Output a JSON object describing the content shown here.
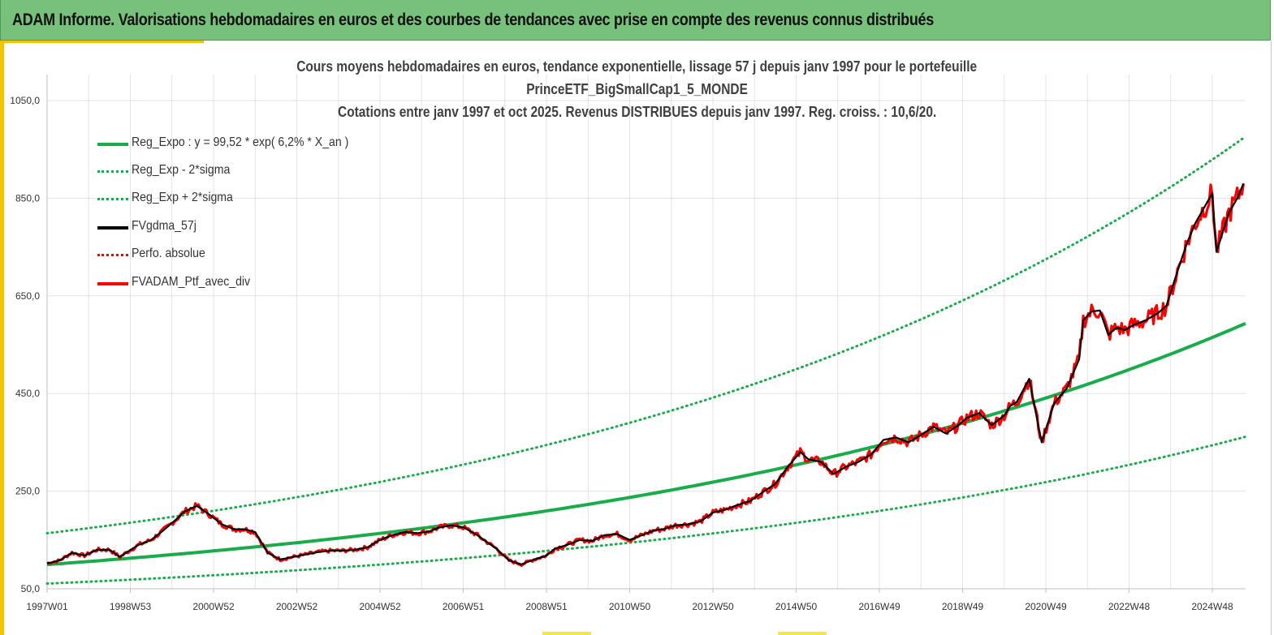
{
  "banner": {
    "title": "ADAM Informe. Valorisations hebdomadaires en euros et des courbes de tendances avec prise en compte des revenus connus distribués"
  },
  "colors": {
    "banner_bg": "#77c27b",
    "trend": "#1aab4b",
    "smooth": "#000000",
    "portfolio": "#ff0000",
    "accent": "#f5c400"
  },
  "chart_data": {
    "type": "line",
    "title": [
      "Cours moyens hebdomadaires  en euros, tendance exponentielle, lissage 57 j depuis janv 1997 pour le portefeuille",
      "PrinceETF_BigSmallCap1_5_MONDE",
      "Cotations  entre janv 1997 et oct 2025. Revenus DISTRIBUES depuis janv 1997. Reg. croiss. : 10,6/20."
    ],
    "xlabel": "",
    "ylabel": "",
    "ylim": [
      50,
      1050
    ],
    "xlim": [
      1997.0,
      2025.8
    ],
    "yticks": [
      "1050,0",
      "850,0",
      "650,0",
      "450,0",
      "250,0",
      "50,0"
    ],
    "ytick_values": [
      1050,
      850,
      650,
      450,
      250,
      50
    ],
    "xticks": [
      "1997W01",
      "1998W53",
      "2000W52",
      "2002W52",
      "2004W52",
      "2006W51",
      "2008W51",
      "2010W50",
      "2012W50",
      "2014W50",
      "2016W49",
      "2018W49",
      "2020W49",
      "2022W48",
      "2024W48"
    ],
    "xtick_values": [
      1997.0,
      1999.0,
      2001.0,
      2003.0,
      2005.0,
      2007.0,
      2009.0,
      2011.0,
      2013.0,
      2015.0,
      2017.0,
      2019.0,
      2021.0,
      2023.0,
      2025.0
    ],
    "grid": true,
    "legend_position": "top-left",
    "regression": {
      "a": 99.52,
      "rate_percent": 6.2,
      "sigma_factor_low": 0.609,
      "sigma_factor_high": 1.645
    },
    "series": [
      {
        "name": "Reg_Expo : y = 99,52 * exp( 6,2% *  X_an )",
        "kind": "trend",
        "color": "#1aab4b",
        "style": "solid"
      },
      {
        "name": "Reg_Exp - 2*sigma",
        "kind": "lower",
        "color": "#1aab4b",
        "style": "dotted"
      },
      {
        "name": "Reg_Exp + 2*sigma",
        "kind": "upper",
        "color": "#1aab4b",
        "style": "dotted"
      },
      {
        "name": "FVgdma_57j",
        "kind": "smooth",
        "color": "#000000",
        "style": "solid"
      },
      {
        "name": "Perfo. absolue",
        "kind": "absolute",
        "color": "#ff0000",
        "style": "dotted"
      },
      {
        "name": "FVADAM_Ptf_avec_div",
        "kind": "portfolio",
        "color": "#ff0000",
        "style": "solid",
        "x": [
          1997.0,
          1997.3,
          1997.6,
          1997.9,
          1998.2,
          1998.5,
          1998.75,
          1998.9,
          1999.2,
          1999.5,
          1999.8,
          2000.1,
          2000.3,
          2000.6,
          2000.9,
          2001.2,
          2001.5,
          2001.75,
          2002.0,
          2002.3,
          2002.6,
          2002.9,
          2003.2,
          2003.5,
          2003.8,
          2004.1,
          2004.4,
          2004.7,
          2005.0,
          2005.3,
          2005.6,
          2005.9,
          2006.2,
          2006.4,
          2006.7,
          2007.0,
          2007.3,
          2007.5,
          2007.8,
          2008.1,
          2008.4,
          2008.7,
          2009.0,
          2009.2,
          2009.5,
          2009.8,
          2010.1,
          2010.4,
          2010.7,
          2011.0,
          2011.3,
          2011.6,
          2011.8,
          2012.1,
          2012.4,
          2012.7,
          2013.0,
          2013.3,
          2013.6,
          2013.9,
          2014.2,
          2014.5,
          2014.8,
          2015.1,
          2015.3,
          2015.6,
          2015.9,
          2016.2,
          2016.5,
          2016.8,
          2017.1,
          2017.4,
          2017.7,
          2018.0,
          2018.3,
          2018.6,
          2018.9,
          2019.1,
          2019.4,
          2019.7,
          2020.0,
          2020.15,
          2020.3,
          2020.6,
          2020.9,
          2021.2,
          2021.5,
          2021.8,
          2021.9,
          2022.1,
          2022.3,
          2022.5,
          2022.7,
          2022.9,
          2023.1,
          2023.4,
          2023.7,
          2023.9,
          2024.2,
          2024.4,
          2024.6,
          2024.8,
          2025.0,
          2025.1,
          2025.25,
          2025.4,
          2025.6,
          2025.75
        ],
        "values": [
          102,
          108,
          124,
          118,
          130,
          130,
          115,
          124,
          140,
          150,
          170,
          192,
          208,
          220,
          202,
          182,
          172,
          172,
          166,
          124,
          110,
          115,
          120,
          125,
          128,
          128,
          130,
          135,
          150,
          160,
          166,
          164,
          168,
          175,
          180,
          176,
          162,
          150,
          132,
          108,
          100,
          110,
          118,
          132,
          140,
          150,
          148,
          160,
          162,
          150,
          160,
          170,
          172,
          180,
          182,
          188,
          206,
          212,
          222,
          230,
          248,
          265,
          300,
          330,
          315,
          310,
          285,
          300,
          310,
          325,
          355,
          360,
          350,
          365,
          382,
          368,
          385,
          400,
          410,
          385,
          405,
          425,
          432,
          480,
          350,
          430,
          460,
          520,
          600,
          618,
          620,
          570,
          585,
          580,
          590,
          600,
          615,
          630,
          710,
          760,
          800,
          830,
          860,
          740,
          780,
          820,
          850,
          880
        ]
      }
    ]
  },
  "legend": [
    {
      "label": "Reg_Expo : y = 99,52 * exp( 6,2% *  X_an )",
      "color": "#1aab4b",
      "style": "solid"
    },
    {
      "label": "Reg_Exp - 2*sigma",
      "color": "#1aab4b",
      "style": "dotted"
    },
    {
      "label": "Reg_Exp + 2*sigma",
      "color": "#1aab4b",
      "style": "dotted"
    },
    {
      "label": "FVgdma_57j",
      "color": "#000000",
      "style": "solid"
    },
    {
      "label": "Perfo. absolue",
      "color": "#ff0000",
      "style": "dotted"
    },
    {
      "label": "FVADAM_Ptf_avec_div",
      "color": "#ff0000",
      "style": "solid"
    }
  ]
}
